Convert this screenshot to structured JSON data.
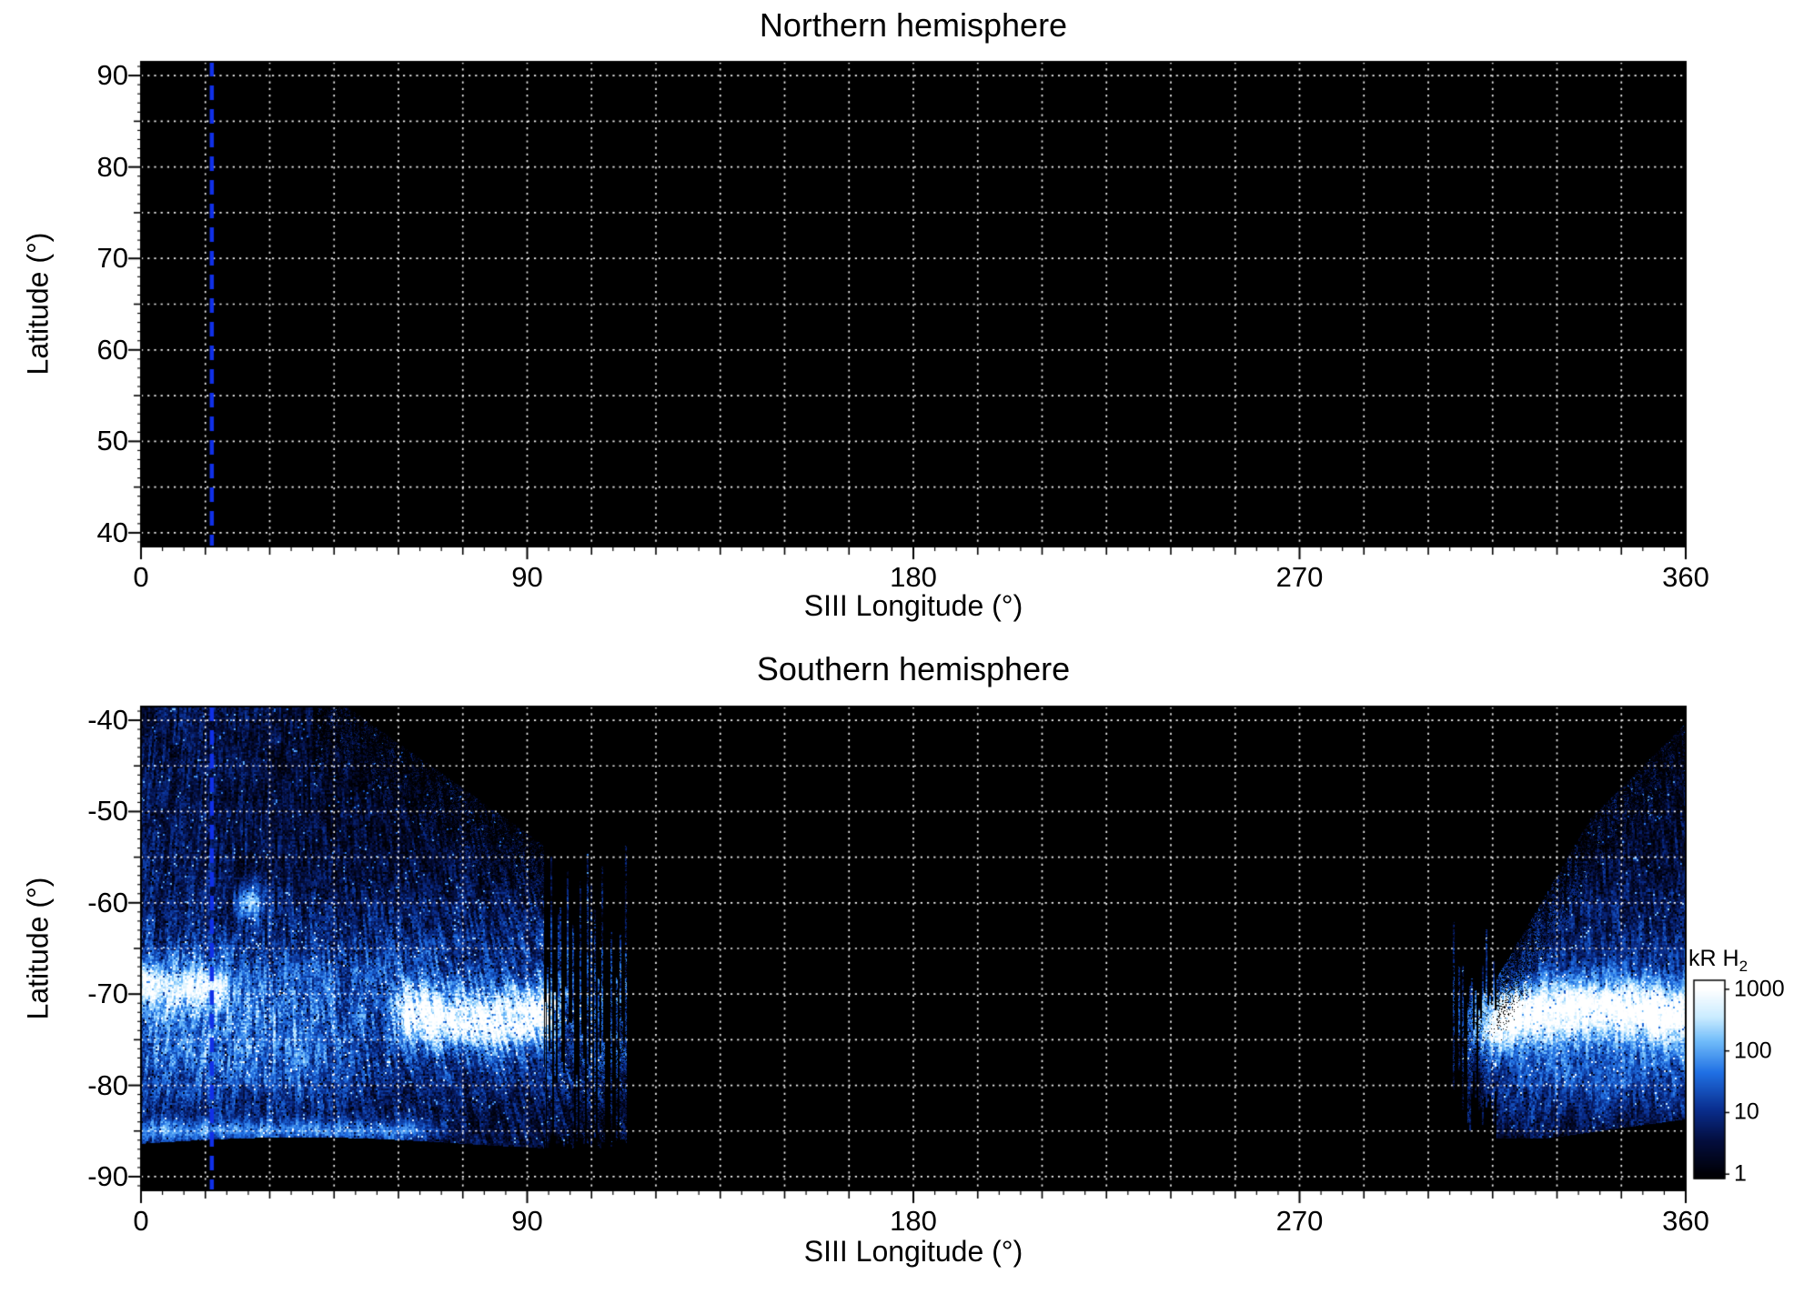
{
  "figure": {
    "background": "#ffffff",
    "plot_bg": "#000000",
    "text_color": "#000000",
    "grid_color": "rgba(255,255,255,0.95)",
    "cml_line": {
      "color": "#1030e8",
      "longitude_deg": 16.5,
      "dash": [
        16,
        10
      ]
    },
    "colormap_stops": [
      [
        0.0,
        0,
        0,
        6
      ],
      [
        0.18,
        4,
        14,
        62
      ],
      [
        0.35,
        10,
        46,
        142
      ],
      [
        0.55,
        32,
        112,
        228
      ],
      [
        0.72,
        112,
        188,
        250
      ],
      [
        0.85,
        202,
        236,
        255
      ],
      [
        1.0,
        255,
        255,
        255
      ]
    ],
    "panels": [
      {
        "id": "northern",
        "x_tick_labels": [
          "0",
          "90",
          "180",
          "270",
          "360"
        ],
        "x_tick_values": [
          0,
          90,
          180,
          270,
          360
        ],
        "y_tick_labels": [
          "90",
          "80",
          "70",
          "60",
          "50",
          "40"
        ],
        "y_tick_values": [
          90,
          80,
          70,
          60,
          50,
          40
        ]
      },
      {
        "id": "southern",
        "x_tick_labels": [
          "0",
          "90",
          "180",
          "270",
          "360"
        ],
        "x_tick_values": [
          0,
          90,
          180,
          270,
          360
        ],
        "y_tick_labels": [
          "-40",
          "-50",
          "-60",
          "-70",
          "-80",
          "-90"
        ],
        "y_tick_values": [
          -40,
          -50,
          -60,
          -70,
          -80,
          -90
        ]
      }
    ],
    "colorbar": {
      "title_prefix": "kR H",
      "title_sub": "2",
      "tick_labels": [
        "1000",
        "100",
        "10",
        "1"
      ],
      "tick_values": [
        1000,
        100,
        10,
        1
      ],
      "scale": "log"
    }
  },
  "chart_data": [
    {
      "type": "heatmap",
      "title": "Northern hemisphere",
      "xlabel": "SIII Longitude (°)",
      "ylabel": "Latitude (°)",
      "xlim": [
        0,
        360
      ],
      "ylim": [
        40,
        90
      ],
      "x_ticks": [
        0,
        90,
        180,
        270,
        360
      ],
      "y_ticks": [
        40,
        50,
        60,
        70,
        80,
        90
      ],
      "grid": {
        "on": true,
        "lon_step_deg": 15,
        "lat_step_deg": 5,
        "style": "white dotted"
      },
      "data_coverage": "none - entire panel is black (no auroral emission observed/mapped)",
      "annotations": [
        {
          "type": "vline",
          "x_deg": 16.5,
          "color": "blue",
          "style": "dashed",
          "label": "central meridian longitude marker"
        }
      ]
    },
    {
      "type": "heatmap",
      "title": "Southern hemisphere",
      "xlabel": "SIII Longitude (°)",
      "ylabel": "Latitude (°)",
      "xlim": [
        0,
        360
      ],
      "ylim": [
        -90,
        -40
      ],
      "x_ticks": [
        0,
        90,
        180,
        270,
        360
      ],
      "y_ticks": [
        -40,
        -50,
        -60,
        -70,
        -80,
        -90
      ],
      "grid": {
        "on": true,
        "lon_step_deg": 15,
        "lat_step_deg": 5,
        "style": "white dotted"
      },
      "colorbar": {
        "label": "kR H2",
        "scale": "log",
        "ticks": [
          1,
          10,
          100,
          1000
        ],
        "range_kR": [
          1,
          1000
        ]
      },
      "coverage_regions": [
        {
          "lon_deg": [
            0,
            113
          ],
          "lat_deg": [
            -86.5,
            -40
          ],
          "description": "speckled auroral emission swath with striated, finger-like right edge (lon 95-113)"
        },
        {
          "lon_deg": [
            306,
            360
          ],
          "lat_deg": [
            -85.5,
            -41
          ],
          "description": "speckled auroral emission swath with striated left edge, brightest band of the map"
        }
      ],
      "features": [
        {
          "name": "diffuse polar speckle west",
          "lon_deg": [
            0,
            95
          ],
          "lat_deg": [
            -60,
            -40
          ],
          "intensity_kR": [
            1,
            20
          ]
        },
        {
          "name": "bright emission band west",
          "lon_deg": [
            0,
            100
          ],
          "lat_center_deg": -71.5,
          "lat_width_deg": 15,
          "intensity_kR": [
            20,
            300
          ]
        },
        {
          "name": "main oval arc segment west",
          "lon_deg": [
            60,
            97
          ],
          "lat_center_deg": -72,
          "peak_intensity_kR": 1000
        },
        {
          "name": "arc segment near 0-20 deg",
          "lon_deg": [
            0,
            20
          ],
          "lat_center_deg": -69,
          "peak_intensity_kR": 400
        },
        {
          "name": "bright spot",
          "lon_deg": [
            23,
            28
          ],
          "lat_center_deg": -60,
          "peak_intensity_kR": 300
        },
        {
          "name": "thin low-latitude arc",
          "lon_deg": [
            0,
            70
          ],
          "lat_center_deg": -85,
          "peak_intensity_kR": 100
        },
        {
          "name": "main oval arc east (brightest, saturated white)",
          "lon_deg": [
            312,
            360
          ],
          "lat_center_deg": -73,
          "peak_intensity_kR": 1000
        },
        {
          "name": "no-data gap",
          "lon_deg": [
            114,
            305
          ],
          "intensity_kR": 0
        }
      ],
      "annotations": [
        {
          "type": "vline",
          "x_deg": 16.5,
          "color": "blue",
          "style": "dashed",
          "label": "central meridian longitude marker"
        }
      ]
    }
  ]
}
